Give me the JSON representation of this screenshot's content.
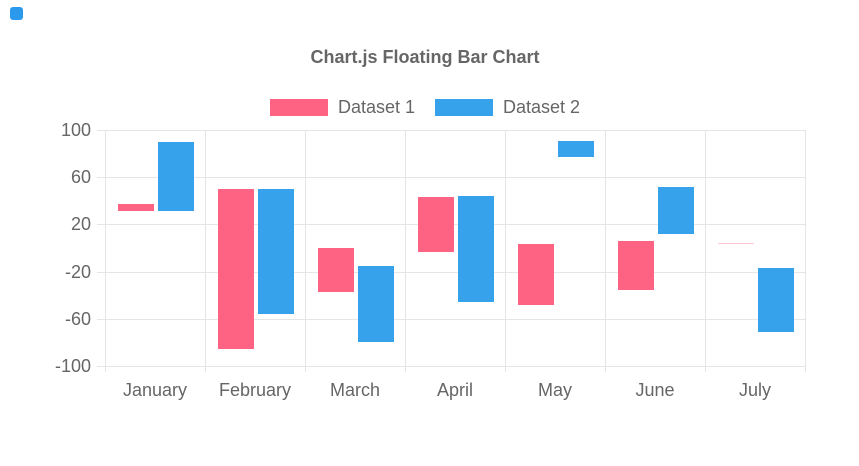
{
  "page": {
    "corner_icon_color": "#2b9aec"
  },
  "chart_data": {
    "type": "bar",
    "variant": "floating",
    "title": "Chart.js Floating Bar Chart",
    "categories": [
      "January",
      "February",
      "March",
      "April",
      "May",
      "June",
      "July"
    ],
    "series": [
      {
        "name": "Dataset 1",
        "color": "#FF6384",
        "values": [
          [
            31,
            37
          ],
          [
            -86,
            50
          ],
          [
            -37,
            0
          ],
          [
            -3,
            43
          ],
          [
            -48,
            3
          ],
          [
            -36,
            6
          ],
          [
            3,
            4
          ]
        ]
      },
      {
        "name": "Dataset 2",
        "color": "#36A2EB",
        "values": [
          [
            31,
            90
          ],
          [
            -56,
            50
          ],
          [
            -80,
            -15
          ],
          [
            -46,
            44
          ],
          [
            77,
            91
          ],
          [
            12,
            52
          ],
          [
            -71,
            -17
          ]
        ]
      }
    ],
    "y_ticks": [
      100,
      60,
      20,
      -20,
      -60,
      -100
    ],
    "ylim": [
      -100,
      100
    ],
    "xlabel": "",
    "ylabel": "",
    "grid": true,
    "legend_position": "top",
    "text_color": "#666666",
    "grid_color": "#e5e5e5"
  }
}
